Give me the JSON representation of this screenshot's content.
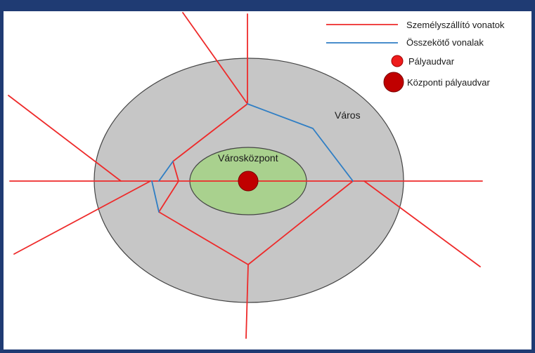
{
  "colors": {
    "frame": "#1f3b73",
    "city": "#c6c6c6",
    "center": "#a9d18e",
    "passenger_line": "#ee2a2a",
    "connector_line": "#2f7ec4",
    "station": "#ee1c1c",
    "central_station": "#c00000"
  },
  "legend": {
    "items": [
      {
        "label": "Személyszállító vonatok",
        "symbol": "red-line"
      },
      {
        "label": "Összekötő vonalak",
        "symbol": "blue-line"
      },
      {
        "label": "Pályaudvar",
        "symbol": "small-red-dot"
      },
      {
        "label": "Központi pályaudvar",
        "symbol": "large-dark-red-dot"
      }
    ]
  },
  "diagram": {
    "city_label": "Város",
    "center_label": "Városközpont"
  }
}
